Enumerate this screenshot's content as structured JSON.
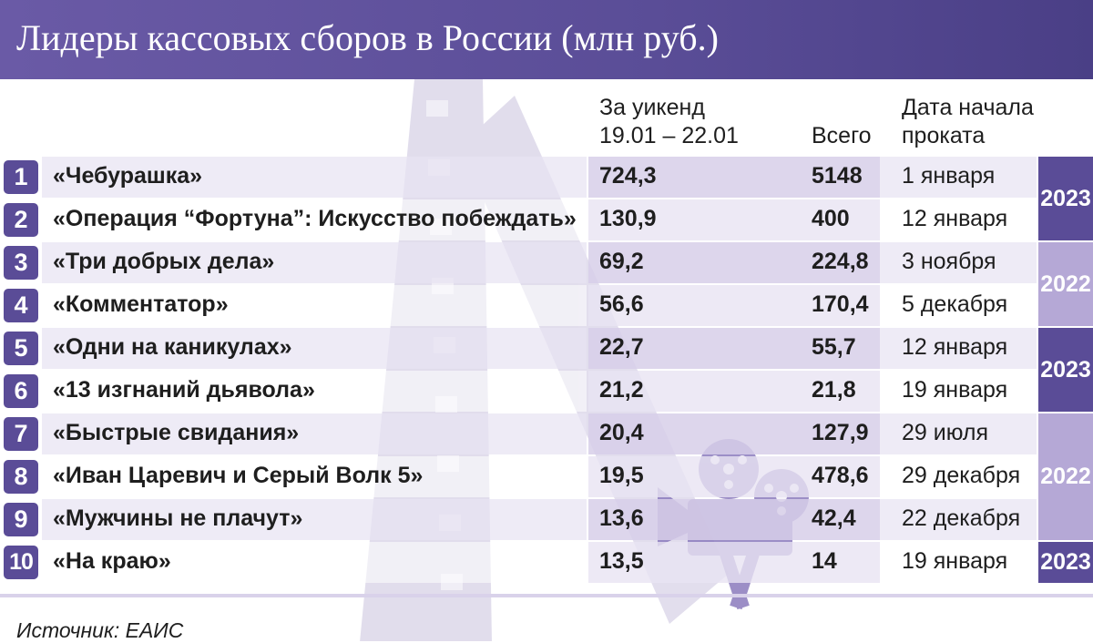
{
  "title": "Лидеры кассовых сборов в России (млн руб.)",
  "headers": {
    "weekend_line1": "За уикенд",
    "weekend_line2": "19.01 – 22.01",
    "total": "Всего",
    "date_line1": "Дата начала",
    "date_line2": "проката"
  },
  "rows": [
    {
      "rank": "1",
      "title": "«Чебурашка»",
      "weekend": "724,3",
      "total": "5148",
      "date": "1 января"
    },
    {
      "rank": "2",
      "title": "«Операция “Фортуна”: Искусство побеждать»",
      "weekend": "130,9",
      "total": "400",
      "date": "12 января"
    },
    {
      "rank": "3",
      "title": "«Три добрых дела»",
      "weekend": "69,2",
      "total": "224,8",
      "date": "3 ноября"
    },
    {
      "rank": "4",
      "title": "«Комментатор»",
      "weekend": "56,6",
      "total": "170,4",
      "date": "5 декабря"
    },
    {
      "rank": "5",
      "title": "«Одни на каникулах»",
      "weekend": "22,7",
      "total": "55,7",
      "date": "12 января"
    },
    {
      "rank": "6",
      "title": "«13 изгнаний дьявола»",
      "weekend": "21,2",
      "total": "21,8",
      "date": "19 января"
    },
    {
      "rank": "7",
      "title": "«Быстрые свидания»",
      "weekend": "20,4",
      "total": "127,9",
      "date": "29 июля"
    },
    {
      "rank": "8",
      "title": "«Иван Царевич и Серый Волк 5»",
      "weekend": "19,5",
      "total": "478,6",
      "date": "29 декабря"
    },
    {
      "rank": "9",
      "title": "«Мужчины не плачут»",
      "weekend": "13,6",
      "total": "42,4",
      "date": "22 декабря"
    },
    {
      "rank": "10",
      "title": "«На краю»",
      "weekend": "13,5",
      "total": "14",
      "date": "19 января"
    }
  ],
  "year_groups": [
    {
      "year": "2023",
      "from_row": 0,
      "to_row": 1
    },
    {
      "year": "2022",
      "from_row": 2,
      "to_row": 3
    },
    {
      "year": "2023",
      "from_row": 4,
      "to_row": 5
    },
    {
      "year": "2022",
      "from_row": 6,
      "to_row": 8
    },
    {
      "year": "2023",
      "from_row": 9,
      "to_row": 9
    }
  ],
  "colors": {
    "accent": "#5a4c97",
    "accent_light": "#b5a8d6",
    "row_tint": "#e8e3f2"
  },
  "source": "Источник: ЕАИС",
  "chart_data": {
    "type": "table",
    "title": "Лидеры кассовых сборов в России (млн руб.)",
    "columns": [
      "За уикенд 19.01 – 22.01",
      "Всего",
      "Дата начала проката"
    ],
    "categories": [
      "«Чебурашка»",
      "«Операция “Фортуна”: Искусство побеждать»",
      "«Три добрых дела»",
      "«Комментатор»",
      "«Одни на каникулах»",
      "«13 изгнаний дьявола»",
      "«Быстрые свидания»",
      "«Иван Царевич и Серый Волк 5»",
      "«Мужчины не плачут»",
      "«На краю»"
    ],
    "series": [
      {
        "name": "За уикенд 19.01 – 22.01",
        "values": [
          724.3,
          130.9,
          69.2,
          56.6,
          22.7,
          21.2,
          20.4,
          19.5,
          13.6,
          13.5
        ]
      },
      {
        "name": "Всего",
        "values": [
          5148,
          400,
          224.8,
          170.4,
          55.7,
          21.8,
          127.9,
          478.6,
          42.4,
          14
        ]
      }
    ],
    "release_dates": [
      "1 января",
      "12 января",
      "3 ноября",
      "5 декабря",
      "12 января",
      "19 января",
      "29 июля",
      "29 декабря",
      "22 декабря",
      "19 января"
    ],
    "release_years": [
      "2023",
      "2023",
      "2022",
      "2022",
      "2023",
      "2023",
      "2022",
      "2022",
      "2022",
      "2023"
    ]
  }
}
